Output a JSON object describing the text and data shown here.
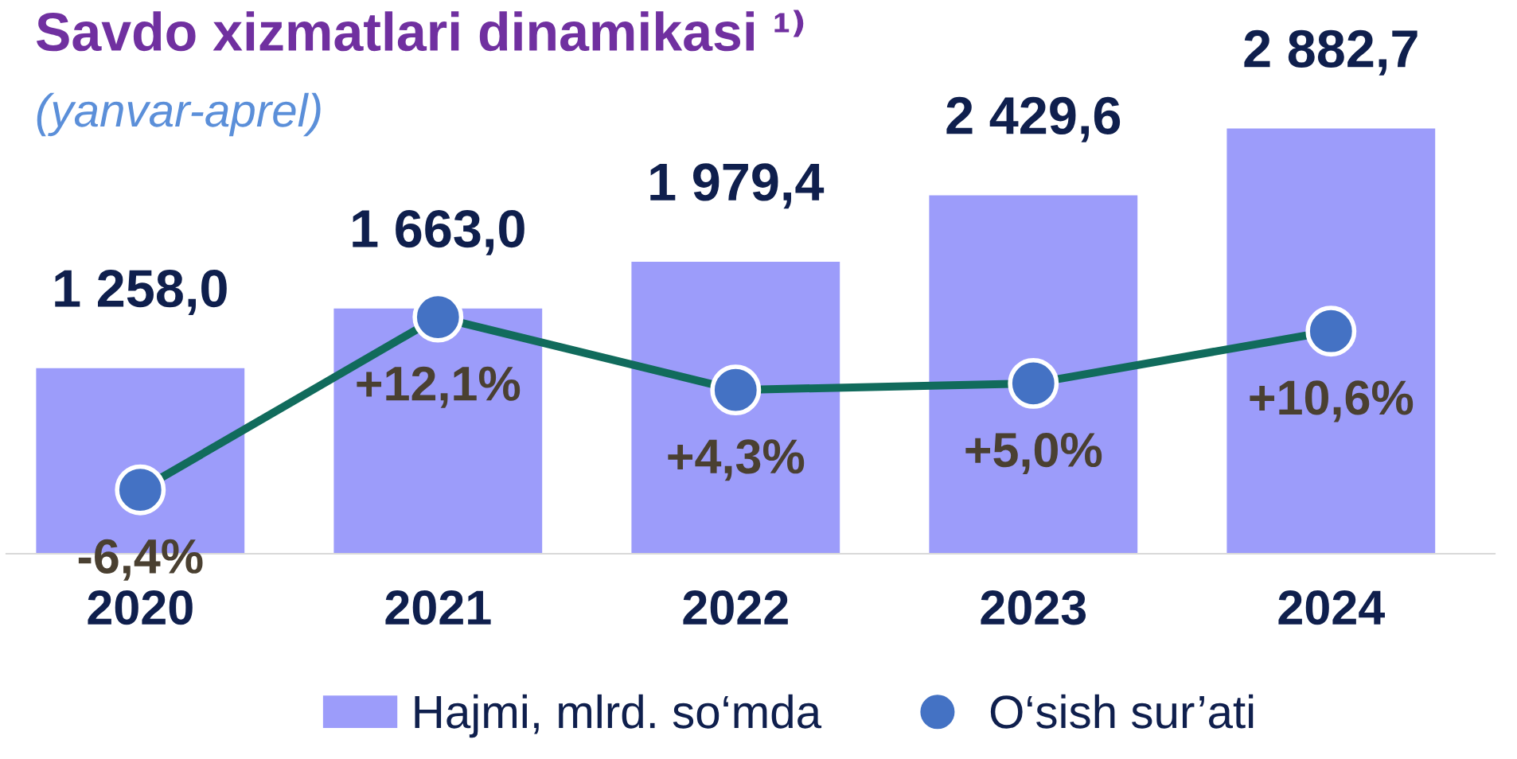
{
  "chart_data": {
    "type": "bar",
    "title": "Savdo xizmatlari dinamikasi ¹⁾",
    "subtitle": "(yanvar-aprel)",
    "categories": [
      "2020",
      "2021",
      "2022",
      "2023",
      "2024"
    ],
    "series": [
      {
        "name": "Hajmi, mlrd. so‘mda",
        "color": "#9c9cfa",
        "values": [
          1258.0,
          1663.0,
          1979.4,
          2429.6,
          2882.7
        ],
        "value_labels": [
          "1 258,0",
          "1 663,0",
          "1 979,4",
          "2 429,6",
          "2 882,7"
        ]
      },
      {
        "name": "O‘sish sur’ati",
        "type": "line",
        "axis": "y2",
        "color": "#116b5c",
        "colors": [
          "#4472c4",
          "#4472c4",
          "#4472c4",
          "#4472c4",
          "#4472c4"
        ],
        "values": [
          -6.4,
          12.1,
          4.3,
          5.0,
          10.6
        ],
        "value_labels": [
          "-6,4%",
          "+12,1%",
          "+4,3%",
          "+5,0%",
          "+10,6%"
        ]
      }
    ],
    "marker": "circle",
    "line_style": "solid",
    "legend": "bottom",
    "tick_labels": "x"
  }
}
